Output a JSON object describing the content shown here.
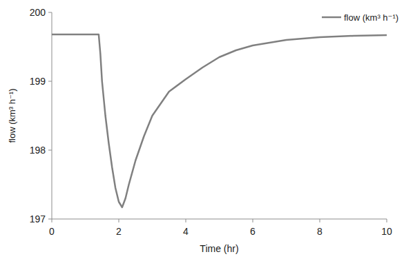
{
  "chart_data": {
    "type": "line",
    "x_label": "Time (hr)",
    "y_label": "flow (km³ h⁻¹)",
    "x": [
      0,
      1.4,
      1.45,
      1.5,
      1.6,
      1.7,
      1.8,
      1.9,
      2.0,
      2.1,
      2.2,
      2.3,
      2.5,
      2.75,
      3,
      3.5,
      4,
      4.5,
      5,
      5.5,
      6,
      7,
      8,
      9,
      10
    ],
    "series": [
      {
        "name": "flow (km³ h⁻¹)",
        "color": "#808080",
        "values": [
          199.68,
          199.68,
          199.4,
          199.0,
          198.5,
          198.1,
          197.75,
          197.45,
          197.25,
          197.17,
          197.3,
          197.5,
          197.85,
          198.2,
          198.5,
          198.85,
          199.03,
          199.2,
          199.35,
          199.45,
          199.52,
          199.6,
          199.64,
          199.66,
          199.67
        ]
      }
    ],
    "xlim": [
      0,
      10
    ],
    "xticks": [
      0,
      2,
      4,
      6,
      8,
      10
    ],
    "ylim": [
      197,
      200
    ],
    "yticks": [
      197,
      198,
      199,
      200
    ],
    "grid": false,
    "legend": "top-right"
  }
}
